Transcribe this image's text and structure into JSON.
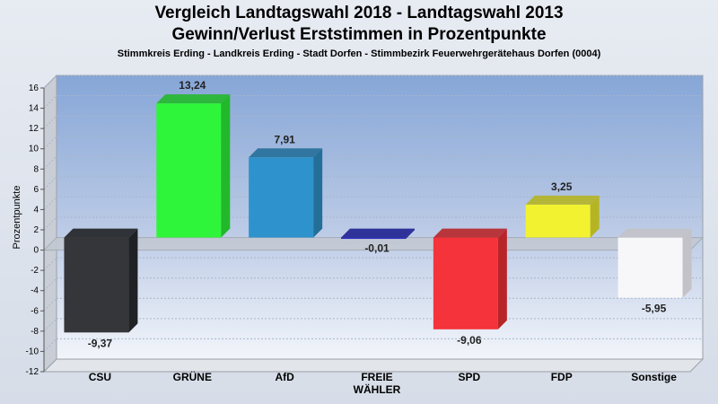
{
  "chart_data": {
    "type": "bar",
    "title": "Vergleich Landtagswahl 2018 - Landtagswahl 2013",
    "title2": "Gewinn/Verlust Erststimmen in Prozentpunkte",
    "subtitle": "Stimmkreis Erding - Landkreis Erding - Stadt Dorfen - Stimmbezirk Feuerwehrgerätehaus Dorfen (0004)",
    "ylabel": "Prozentpunkte",
    "xlabel": "",
    "ylim": [
      -12,
      16
    ],
    "yticks": [
      "16",
      "14",
      "12",
      "10",
      "8",
      "6",
      "4",
      "2",
      "0",
      "-2",
      "-4",
      "-6",
      "-8",
      "-10",
      "-12"
    ],
    "categories": [
      [
        "CSU"
      ],
      [
        "GRÜNE"
      ],
      [
        "AfD"
      ],
      [
        "FREIE",
        "WÄHLER"
      ],
      [
        "SPD"
      ],
      [
        "FDP"
      ],
      [
        "Sonstige"
      ]
    ],
    "values": [
      -9.37,
      13.24,
      7.91,
      -0.01,
      -9.06,
      3.25,
      -5.95
    ],
    "value_labels": [
      "-9,37",
      "13,24",
      "7,91",
      "-0,01",
      "-9,06",
      "3,25",
      "-5,95"
    ],
    "colors": [
      "#34363a",
      "#2ef53a",
      "#2e93cc",
      "#2a2ec0",
      "#f5333a",
      "#f2f231",
      "#f7f7fa"
    ],
    "side_colors": [
      "#1f2124",
      "#22b82b",
      "#246f9a",
      "#1f2290",
      "#b82529",
      "#b5b524",
      "#c2c2c8"
    ],
    "grid": true,
    "legend": "none"
  }
}
